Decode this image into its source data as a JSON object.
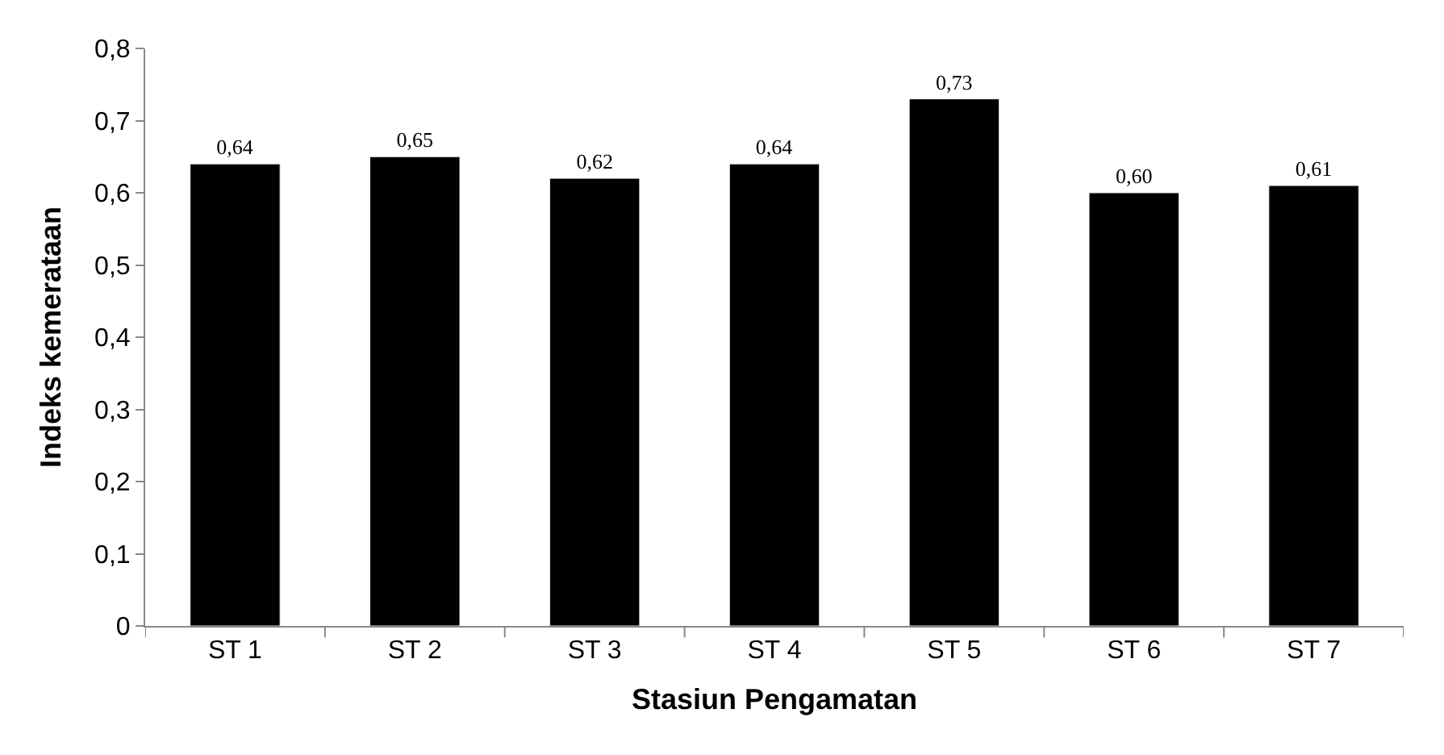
{
  "chart_data": {
    "type": "bar",
    "xlabel": "Stasiun Pengamatan",
    "ylabel": "Indeks kemerataan",
    "categories": [
      "ST 1",
      "ST 2",
      "ST 3",
      "ST 4",
      "ST 5",
      "ST 6",
      "ST 7"
    ],
    "values": [
      0.64,
      0.65,
      0.62,
      0.64,
      0.73,
      0.6,
      0.61
    ],
    "value_labels": [
      "0,64",
      "0,65",
      "0,62",
      "0,64",
      "0,73",
      "0,60",
      "0,61"
    ],
    "color": "#000000",
    "ylim": [
      0,
      0.8
    ],
    "yticks": [
      {
        "value": 0,
        "label": "0"
      },
      {
        "value": 0.1,
        "label": "0,1"
      },
      {
        "value": 0.2,
        "label": "0,2"
      },
      {
        "value": 0.3,
        "label": "0,3"
      },
      {
        "value": 0.4,
        "label": "0,4"
      },
      {
        "value": 0.5,
        "label": "0,5"
      },
      {
        "value": 0.6,
        "label": "0,6"
      },
      {
        "value": 0.7,
        "label": "0,7"
      },
      {
        "value": 0.8,
        "label": "0,8"
      }
    ],
    "legend": false
  }
}
